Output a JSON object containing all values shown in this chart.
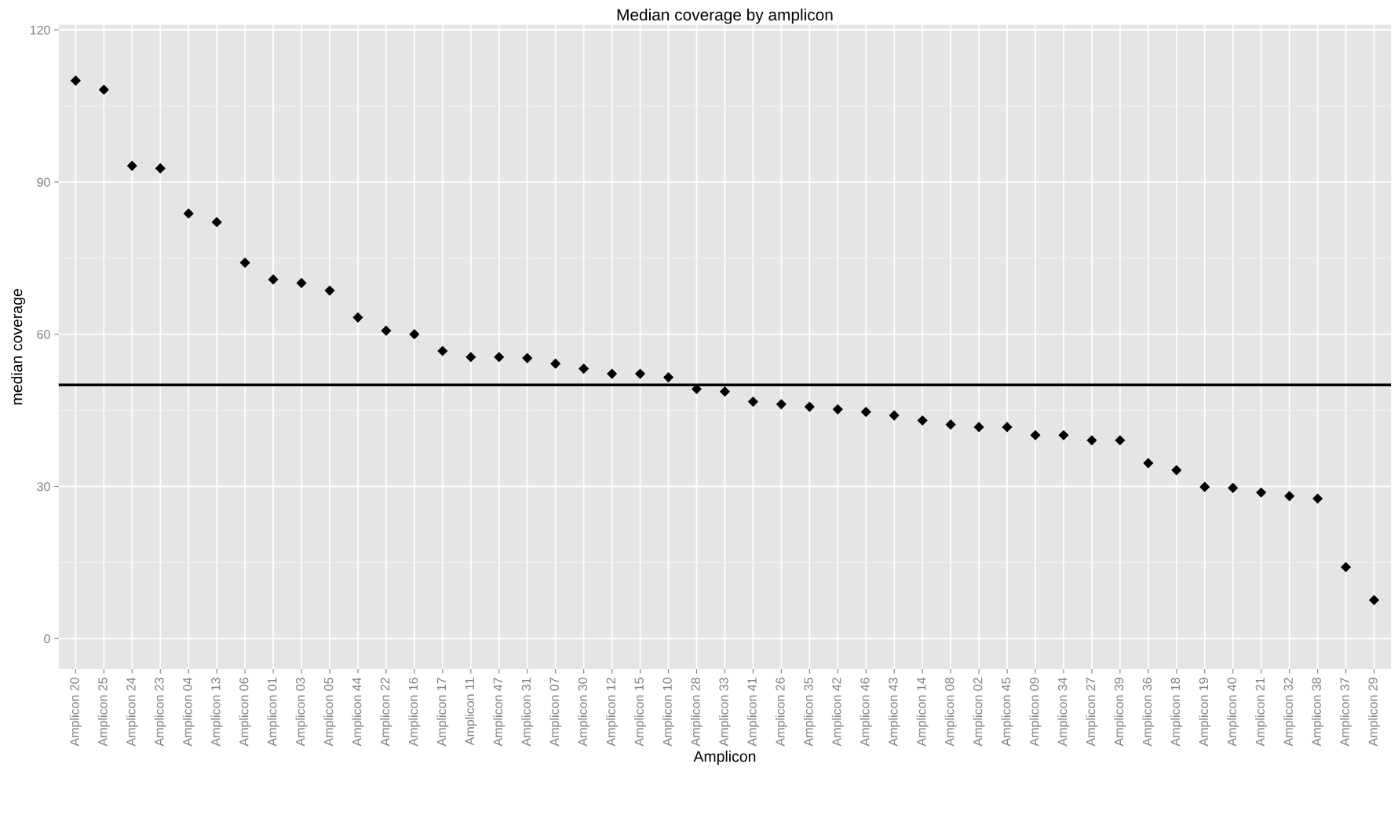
{
  "chart_data": {
    "type": "scatter",
    "title": "Median coverage by amplicon",
    "xlabel": "Amplicon",
    "ylabel": "median coverage",
    "categories": [
      "Amplicon 20",
      "Amplicon 25",
      "Amplicon 24",
      "Amplicon 23",
      "Amplicon 04",
      "Amplicon 13",
      "Amplicon 06",
      "Amplicon 01",
      "Amplicon 03",
      "Amplicon 05",
      "Amplicon 44",
      "Amplicon 22",
      "Amplicon 16",
      "Amplicon 17",
      "Amplicon 11",
      "Amplicon 47",
      "Amplicon 31",
      "Amplicon 07",
      "Amplicon 30",
      "Amplicon 12",
      "Amplicon 15",
      "Amplicon 10",
      "Amplicon 28",
      "Amplicon 33",
      "Amplicon 41",
      "Amplicon 26",
      "Amplicon 35",
      "Amplicon 42",
      "Amplicon 46",
      "Amplicon 43",
      "Amplicon 14",
      "Amplicon 08",
      "Amplicon 02",
      "Amplicon 45",
      "Amplicon 09",
      "Amplicon 34",
      "Amplicon 27",
      "Amplicon 39",
      "Amplicon 36",
      "Amplicon 18",
      "Amplicon 19",
      "Amplicon 40",
      "Amplicon 21",
      "Amplicon 32",
      "Amplicon 38",
      "Amplicon 37",
      "Amplicon 29"
    ],
    "series": [
      {
        "color": "#000000",
        "values": [
          110,
          108.2,
          93.2,
          92.7,
          83.8,
          82.1,
          74.1,
          70.8,
          70.1,
          68.6,
          63.3,
          60.7,
          60.0,
          56.7,
          55.5,
          55.5,
          55.3,
          54.2,
          53.2,
          52.2,
          52.2,
          51.5,
          49.2,
          48.7,
          46.7,
          46.2,
          45.7,
          45.2,
          44.7,
          44.0,
          43.0,
          42.2,
          41.7,
          41.7,
          40.1,
          40.1,
          39.1,
          39.1,
          34.6,
          33.2,
          29.9,
          29.7,
          28.8,
          28.1,
          27.6,
          14.1,
          7.6
        ]
      }
    ],
    "ylim": [
      -6,
      121
    ],
    "yticks": [
      0,
      30,
      60,
      90,
      120
    ],
    "ref_lines": [
      {
        "axis": "y",
        "value": 50,
        "color": "#000000",
        "line_style": "solid"
      }
    ],
    "grid": true,
    "legend": false,
    "marker": "diamond"
  }
}
